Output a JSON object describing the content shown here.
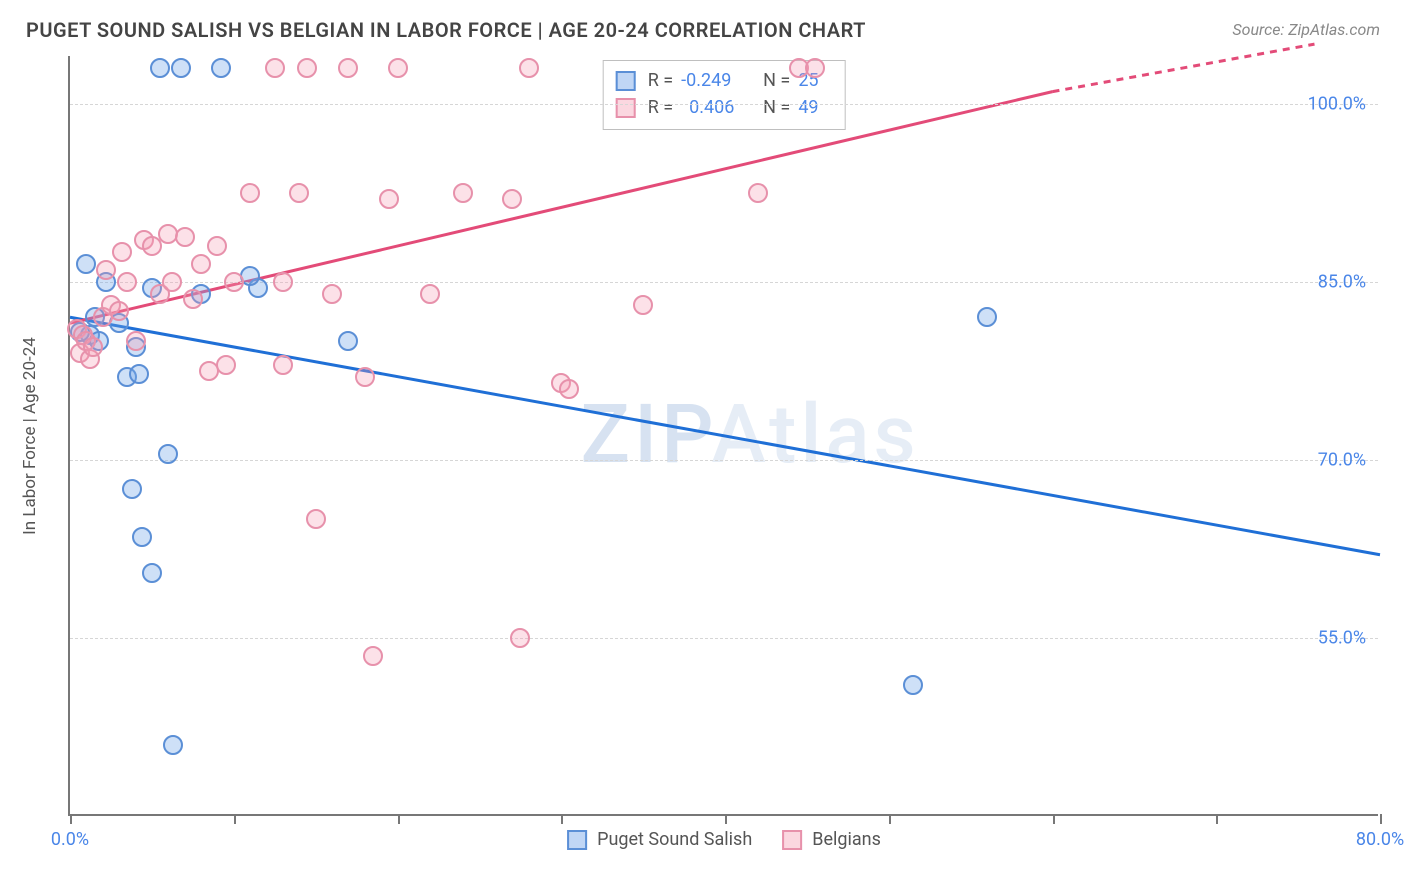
{
  "header": {
    "title": "PUGET SOUND SALISH VS BELGIAN IN LABOR FORCE | AGE 20-24 CORRELATION CHART",
    "source": "Source: ZipAtlas.com"
  },
  "chart": {
    "type": "scatter",
    "y_axis_title": "In Labor Force | Age 20-24",
    "background_color": "#ffffff",
    "grid_color": "#d6d6d6",
    "axis_color": "#777777",
    "tick_label_color": "#4a86e8",
    "axis_title_color": "#555555",
    "title_fontsize": 20,
    "label_fontsize": 18,
    "marker_radius": 10,
    "xlim": [
      0,
      80
    ],
    "ylim": [
      40,
      104
    ],
    "y_ticks": [
      55.0,
      70.0,
      85.0,
      100.0
    ],
    "y_tick_labels": [
      "55.0%",
      "70.0%",
      "85.0%",
      "100.0%"
    ],
    "x_ticks": [
      0,
      10,
      20,
      30,
      40,
      50,
      60,
      70,
      80
    ],
    "x_tick_labels": {
      "0": "0.0%",
      "80": "80.0%"
    },
    "watermark": "ZIPAtlas",
    "series": [
      {
        "name": "Puget Sound Salish",
        "color_fill": "rgba(116,165,232,0.35)",
        "color_stroke": "#5b8fd6",
        "trend_color": "#1f6fd6",
        "trend_line_width": 3,
        "trend_y_at_xmin": 82.0,
        "trend_y_at_xmax": 62.0,
        "points": [
          [
            1.0,
            86.5
          ],
          [
            1.5,
            82.0
          ],
          [
            1.2,
            80.5
          ],
          [
            1.8,
            80.0
          ],
          [
            0.6,
            80.8
          ],
          [
            2.2,
            85.0
          ],
          [
            4.0,
            79.5
          ],
          [
            3.5,
            77.0
          ],
          [
            4.2,
            77.2
          ],
          [
            5.0,
            84.5
          ],
          [
            5.5,
            103.0
          ],
          [
            6.8,
            103.0
          ],
          [
            9.2,
            103.0
          ],
          [
            6.0,
            70.5
          ],
          [
            3.8,
            67.5
          ],
          [
            4.4,
            63.5
          ],
          [
            5.0,
            60.5
          ],
          [
            6.3,
            46.0
          ],
          [
            8.0,
            84.0
          ],
          [
            11.5,
            84.5
          ],
          [
            11.0,
            85.5
          ],
          [
            17.0,
            80.0
          ],
          [
            56.0,
            82.0
          ],
          [
            51.5,
            51.0
          ],
          [
            3.0,
            81.5
          ]
        ]
      },
      {
        "name": "Belgians",
        "color_fill": "rgba(244,154,178,0.30)",
        "color_stroke": "#e791ab",
        "trend_color": "#e34b78",
        "trend_line_width": 3,
        "trend_y_at_xmin": 81.5,
        "trend_y_at_xmax_solid": 101.0,
        "trend_x_solid_end": 60,
        "trend_y_at_xmax_dash": 105.0,
        "trend_x_dash_end": 76,
        "points": [
          [
            0.4,
            81.0
          ],
          [
            0.6,
            79.0
          ],
          [
            0.8,
            80.5
          ],
          [
            1.0,
            80.0
          ],
          [
            1.2,
            78.5
          ],
          [
            1.4,
            79.5
          ],
          [
            2.0,
            82.0
          ],
          [
            2.2,
            86.0
          ],
          [
            2.5,
            83.0
          ],
          [
            3.0,
            82.5
          ],
          [
            3.2,
            87.5
          ],
          [
            3.5,
            85.0
          ],
          [
            4.0,
            80.0
          ],
          [
            4.5,
            88.5
          ],
          [
            5.0,
            88.0
          ],
          [
            5.5,
            84.0
          ],
          [
            6.0,
            89.0
          ],
          [
            6.2,
            85.0
          ],
          [
            7.0,
            88.8
          ],
          [
            7.5,
            83.5
          ],
          [
            8.0,
            86.5
          ],
          [
            8.5,
            77.5
          ],
          [
            9.0,
            88.0
          ],
          [
            9.5,
            78.0
          ],
          [
            10.0,
            85.0
          ],
          [
            11.0,
            92.5
          ],
          [
            12.5,
            103.0
          ],
          [
            13.0,
            85.0
          ],
          [
            13.0,
            78.0
          ],
          [
            14.0,
            92.5
          ],
          [
            14.5,
            103.0
          ],
          [
            15.0,
            65.0
          ],
          [
            16.0,
            84.0
          ],
          [
            17.0,
            103.0
          ],
          [
            18.0,
            77.0
          ],
          [
            19.5,
            92.0
          ],
          [
            20.0,
            103.0
          ],
          [
            22.0,
            84.0
          ],
          [
            24.0,
            92.5
          ],
          [
            27.0,
            92.0
          ],
          [
            28.0,
            103.0
          ],
          [
            30.0,
            76.5
          ],
          [
            30.5,
            76.0
          ],
          [
            35.0,
            83.0
          ],
          [
            18.5,
            53.5
          ],
          [
            27.5,
            55.0
          ],
          [
            44.5,
            103.0
          ],
          [
            45.5,
            103.0
          ],
          [
            42.0,
            92.5
          ]
        ]
      }
    ],
    "stats_box": {
      "rows": [
        {
          "series": 0,
          "r_label": "R =",
          "r_value": "-0.249",
          "n_label": "N =",
          "n_value": "25"
        },
        {
          "series": 1,
          "r_label": "R =",
          "r_value": "0.406",
          "n_label": "N =",
          "n_value": "49"
        }
      ]
    },
    "legend": {
      "items": [
        {
          "series": 0,
          "label": "Puget Sound Salish"
        },
        {
          "series": 1,
          "label": "Belgians"
        }
      ]
    }
  }
}
